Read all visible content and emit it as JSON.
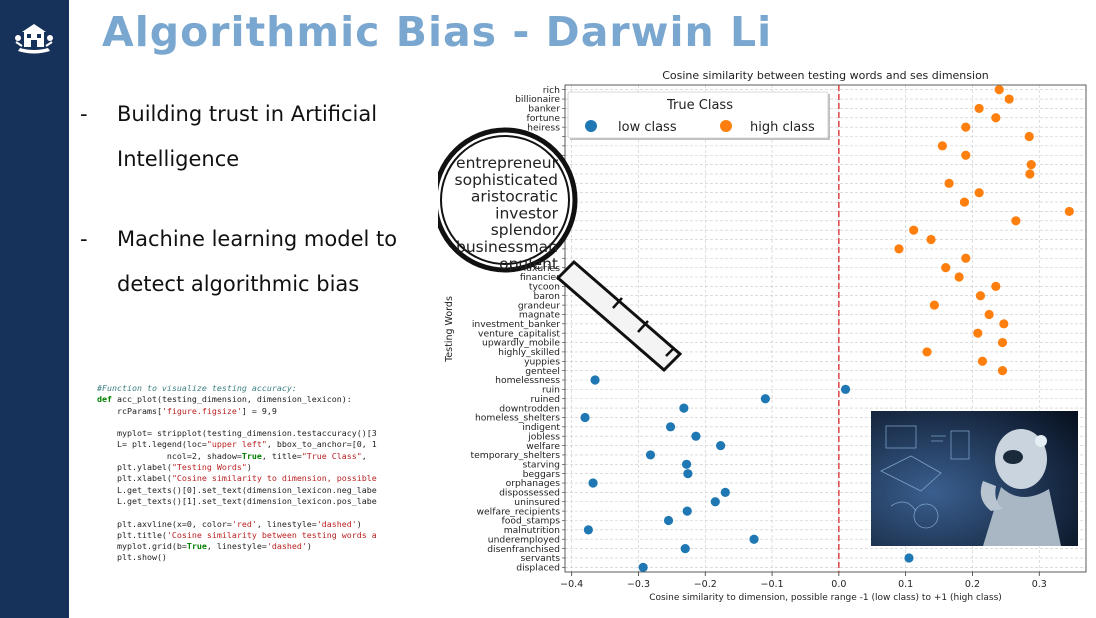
{
  "slide": {
    "title": "Algorithmic Bias - Darwin Li",
    "bullets": [
      {
        "dash": "-",
        "text": "Building trust in Artificial Intelligence"
      },
      {
        "dash": "-",
        "text": "Machine learning model to detect algorithmic bias"
      }
    ]
  },
  "colors": {
    "sidebar": "#16315a",
    "title": "#7aa7cf",
    "low": "#1f77b4",
    "high": "#ff7f0e",
    "axvline": "#d62728"
  },
  "code": [
    [
      {
        "t": "cm",
        "v": "#Function to visualize testing accuracy:"
      }
    ],
    [
      {
        "t": "kw",
        "v": "def"
      },
      {
        "t": "",
        "v": " acc_plot(testing_dimension, dimension_lexicon):"
      }
    ],
    [
      {
        "t": "",
        "v": "    rcParams["
      },
      {
        "t": "st",
        "v": "'figure.figsize'"
      },
      {
        "t": "",
        "v": "] = 9,9"
      }
    ],
    [
      {
        "t": "",
        "v": ""
      }
    ],
    [
      {
        "t": "",
        "v": "    myplot= stripplot(testing_dimension.testaccuracy()[3"
      }
    ],
    [
      {
        "t": "",
        "v": "    L= plt.legend(loc="
      },
      {
        "t": "st",
        "v": "\"upper left\""
      },
      {
        "t": "",
        "v": ", bbox_to_anchor=[0, 1"
      }
    ],
    [
      {
        "t": "",
        "v": "              ncol=2, shadow="
      },
      {
        "t": "kw",
        "v": "True"
      },
      {
        "t": "",
        "v": ", title="
      },
      {
        "t": "st",
        "v": "\"True Class\""
      },
      {
        "t": "",
        "v": ","
      }
    ],
    [
      {
        "t": "",
        "v": "    plt.ylabel("
      },
      {
        "t": "st",
        "v": "\"Testing Words\""
      },
      {
        "t": "",
        "v": ")"
      }
    ],
    [
      {
        "t": "",
        "v": "    plt.xlabel("
      },
      {
        "t": "st",
        "v": "\"Cosine similarity to dimension, possible"
      }
    ],
    [
      {
        "t": "",
        "v": "    L.get_texts()[0].set_text(dimension_lexicon.neg_labe"
      }
    ],
    [
      {
        "t": "",
        "v": "    L.get_texts()[1].set_text(dimension_lexicon.pos_labe"
      }
    ],
    [
      {
        "t": "",
        "v": ""
      }
    ],
    [
      {
        "t": "",
        "v": "    plt.axvline(x=0, color="
      },
      {
        "t": "st",
        "v": "'red'"
      },
      {
        "t": "",
        "v": ", linestyle="
      },
      {
        "t": "st",
        "v": "'dashed'"
      },
      {
        "t": "",
        "v": ")"
      }
    ],
    [
      {
        "t": "",
        "v": "    plt.title("
      },
      {
        "t": "st",
        "v": "'Cosine similarity between testing words a"
      }
    ],
    [
      {
        "t": "",
        "v": "    myplot.grid(b="
      },
      {
        "t": "kw",
        "v": "True"
      },
      {
        "t": "",
        "v": ", linestyle="
      },
      {
        "t": "st",
        "v": "'dashed'"
      },
      {
        "t": "",
        "v": ")"
      }
    ],
    [
      {
        "t": "",
        "v": "    plt.show()"
      }
    ]
  ],
  "chart_data": {
    "type": "scatter",
    "title": "Cosine similarity between testing words and ses dimension",
    "xlabel": "Cosine similarity to dimension, possible range -1 (low class) to +1 (high class)",
    "ylabel": "Testing Words",
    "xlim": [
      -0.41,
      0.37
    ],
    "xticks": [
      -0.4,
      -0.3,
      -0.2,
      -0.1,
      0.0,
      0.1,
      0.2,
      0.3
    ],
    "xtick_labels": [
      "−0.4",
      "−0.3",
      "−0.2",
      "−0.1",
      "0.0",
      "0.1",
      "0.2",
      "0.3"
    ],
    "grid": true,
    "axvline": {
      "x": 0,
      "style": "dashed",
      "color": "red"
    },
    "legend": {
      "title": "True Class",
      "location": "top-left",
      "entries": [
        {
          "name": "low class",
          "class": "low"
        },
        {
          "name": "high class",
          "class": "high"
        }
      ]
    },
    "visible_word_labels": [
      "rich",
      "billionaire",
      "banker",
      "fortune",
      "heiress",
      null,
      null,
      null,
      null,
      null,
      null,
      null,
      null,
      null,
      null,
      null,
      null,
      null,
      null,
      "luxuries",
      "financier",
      "tycoon",
      "baron",
      "grandeur",
      "magnate",
      "investment_banker",
      "venture_capitalist",
      "upwardly_mobile",
      "highly_skilled",
      "yuppies",
      "genteel",
      "homelessness",
      "ruin",
      "ruined",
      "downtrodden",
      "homeless_shelters",
      "indigent",
      "jobless",
      "welfare",
      "temporary_shelters",
      "starving",
      "beggars",
      "orphanages",
      "dispossessed",
      "uninsured",
      "welfare_recipients",
      "food_stamps",
      "malnutrition",
      "underemployed",
      "disenfranchised",
      "servants",
      "displaced"
    ],
    "points": [
      {
        "class": "high",
        "x": 0.24
      },
      {
        "class": "high",
        "x": 0.255
      },
      {
        "class": "high",
        "x": 0.21
      },
      {
        "class": "high",
        "x": 0.235
      },
      {
        "class": "high",
        "x": 0.19
      },
      {
        "class": "high",
        "x": 0.285
      },
      {
        "class": "high",
        "x": 0.155
      },
      {
        "class": "high",
        "x": 0.19
      },
      {
        "class": "high",
        "x": 0.288
      },
      {
        "class": "high",
        "x": 0.286
      },
      {
        "class": "high",
        "x": 0.165
      },
      {
        "class": "high",
        "x": 0.21
      },
      {
        "class": "high",
        "x": 0.188
      },
      {
        "class": "high",
        "x": 0.345
      },
      {
        "class": "high",
        "x": 0.265
      },
      {
        "class": "high",
        "x": 0.112
      },
      {
        "class": "high",
        "x": 0.138
      },
      {
        "class": "high",
        "x": 0.09
      },
      {
        "class": "high",
        "x": 0.19
      },
      {
        "class": "high",
        "x": 0.16
      },
      {
        "class": "high",
        "x": 0.18
      },
      {
        "class": "high",
        "x": 0.235
      },
      {
        "class": "high",
        "x": 0.212
      },
      {
        "class": "high",
        "x": 0.143
      },
      {
        "class": "high",
        "x": 0.225
      },
      {
        "class": "high",
        "x": 0.247
      },
      {
        "class": "high",
        "x": 0.208
      },
      {
        "class": "high",
        "x": 0.245
      },
      {
        "class": "high",
        "x": 0.132
      },
      {
        "class": "high",
        "x": 0.215
      },
      {
        "class": "high",
        "x": 0.245
      },
      {
        "class": "low",
        "x": -0.365
      },
      {
        "class": "low",
        "x": 0.01
      },
      {
        "class": "low",
        "x": -0.11
      },
      {
        "class": "low",
        "x": -0.232
      },
      {
        "class": "low",
        "x": -0.38
      },
      {
        "class": "low",
        "x": -0.252
      },
      {
        "class": "low",
        "x": -0.214
      },
      {
        "class": "low",
        "x": -0.177
      },
      {
        "class": "low",
        "x": -0.282
      },
      {
        "class": "low",
        "x": -0.228
      },
      {
        "class": "low",
        "x": -0.226
      },
      {
        "class": "low",
        "x": -0.368
      },
      {
        "class": "low",
        "x": -0.17
      },
      {
        "class": "low",
        "x": -0.185
      },
      {
        "class": "low",
        "x": -0.227
      },
      {
        "class": "low",
        "x": -0.255
      },
      {
        "class": "low",
        "x": -0.375
      },
      {
        "class": "low",
        "x": -0.127
      },
      {
        "class": "low",
        "x": -0.23
      },
      {
        "class": "low",
        "x": 0.105
      },
      {
        "class": "low",
        "x": -0.293
      }
    ],
    "magnifier_words": [
      "entrepreneur",
      "sophisticated",
      "aristocratic",
      "investor",
      "splendor",
      "businessman",
      "opulent"
    ]
  }
}
